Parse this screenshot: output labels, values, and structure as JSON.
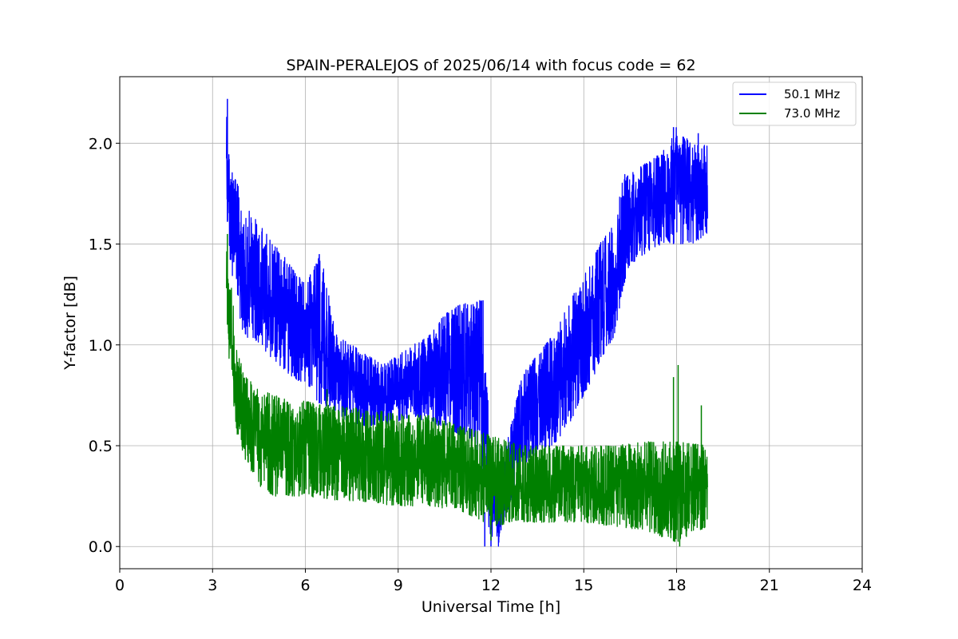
{
  "chart_data": {
    "type": "line",
    "title": "SPAIN-PERALEJOS of 2025/06/14 with focus code = 62",
    "xlabel": "Universal Time [h]",
    "ylabel": "Y-factor [dB]",
    "xlim": [
      0,
      24
    ],
    "ylim": [
      -0.11,
      2.33
    ],
    "xticks": [
      "0",
      "3",
      "6",
      "9",
      "12",
      "15",
      "18",
      "21",
      "24"
    ],
    "yticks": [
      "0.0",
      "0.5",
      "1.0",
      "1.5",
      "2.0"
    ],
    "grid": true,
    "legend_position": "top-right",
    "series": [
      {
        "name": "50.1 MHz",
        "color": "#0000ff",
        "x": [
          3.45,
          3.5,
          3.6,
          3.8,
          4.0,
          4.5,
          5.0,
          5.5,
          6.0,
          6.5,
          7.0,
          7.5,
          8.0,
          8.5,
          9.0,
          9.5,
          10.0,
          10.5,
          11.0,
          11.5,
          11.75,
          12.0,
          12.25,
          12.5,
          13.0,
          13.5,
          14.0,
          14.5,
          15.0,
          15.5,
          16.0,
          16.3,
          16.5,
          17.0,
          17.5,
          18.0,
          18.5,
          19.0
        ],
        "low": [
          1.7,
          1.55,
          1.35,
          1.2,
          1.05,
          1.0,
          0.92,
          0.85,
          0.8,
          0.7,
          0.65,
          0.6,
          0.6,
          0.6,
          0.62,
          0.65,
          0.6,
          0.6,
          0.55,
          0.5,
          0.2,
          0.05,
          0.0,
          0.15,
          0.4,
          0.45,
          0.5,
          0.6,
          0.75,
          0.9,
          1.05,
          1.3,
          1.4,
          1.45,
          1.5,
          1.5,
          1.5,
          1.55
        ],
        "high": [
          2.22,
          2.0,
          1.9,
          1.8,
          1.7,
          1.6,
          1.5,
          1.4,
          1.3,
          1.45,
          1.05,
          1.0,
          0.95,
          0.9,
          0.95,
          1.0,
          1.05,
          1.15,
          1.2,
          1.22,
          1.22,
          0.4,
          0.35,
          0.5,
          0.85,
          0.95,
          1.05,
          1.2,
          1.35,
          1.5,
          1.6,
          1.85,
          1.85,
          1.9,
          1.95,
          2.08,
          2.0,
          2.0
        ],
        "peaks": [
          [
            3.48,
            2.22
          ],
          [
            6.45,
            1.45
          ],
          [
            10.8,
            1.15
          ],
          [
            11.7,
            1.22
          ],
          [
            17.9,
            2.08
          ],
          [
            18.2,
            1.95
          ],
          [
            18.7,
            2.05
          ]
        ],
        "dips": [
          [
            11.8,
            0.0
          ],
          [
            12.0,
            0.0
          ]
        ]
      },
      {
        "name": "73.0 MHz",
        "color": "#008000",
        "x": [
          3.45,
          3.5,
          3.6,
          3.8,
          4.0,
          4.5,
          5.0,
          6.0,
          7.0,
          8.0,
          9.0,
          10.0,
          11.0,
          12.0,
          13.0,
          14.0,
          15.0,
          16.0,
          17.0,
          18.0,
          19.0
        ],
        "low": [
          1.25,
          1.0,
          0.8,
          0.55,
          0.45,
          0.3,
          0.25,
          0.25,
          0.23,
          0.22,
          0.2,
          0.2,
          0.18,
          0.1,
          0.12,
          0.12,
          0.12,
          0.1,
          0.08,
          0.02,
          0.1
        ],
        "high": [
          1.55,
          1.4,
          1.3,
          1.0,
          0.85,
          0.78,
          0.75,
          0.72,
          0.7,
          0.68,
          0.66,
          0.65,
          0.6,
          0.55,
          0.5,
          0.5,
          0.5,
          0.5,
          0.52,
          0.52,
          0.5
        ],
        "peaks": [
          [
            3.48,
            1.55
          ],
          [
            6.7,
            0.78
          ],
          [
            8.8,
            0.63
          ],
          [
            17.9,
            0.84
          ],
          [
            18.05,
            0.9
          ],
          [
            18.8,
            0.7
          ]
        ],
        "dips": [
          [
            12.0,
            0.03
          ],
          [
            18.1,
            0.0
          ]
        ]
      }
    ]
  }
}
